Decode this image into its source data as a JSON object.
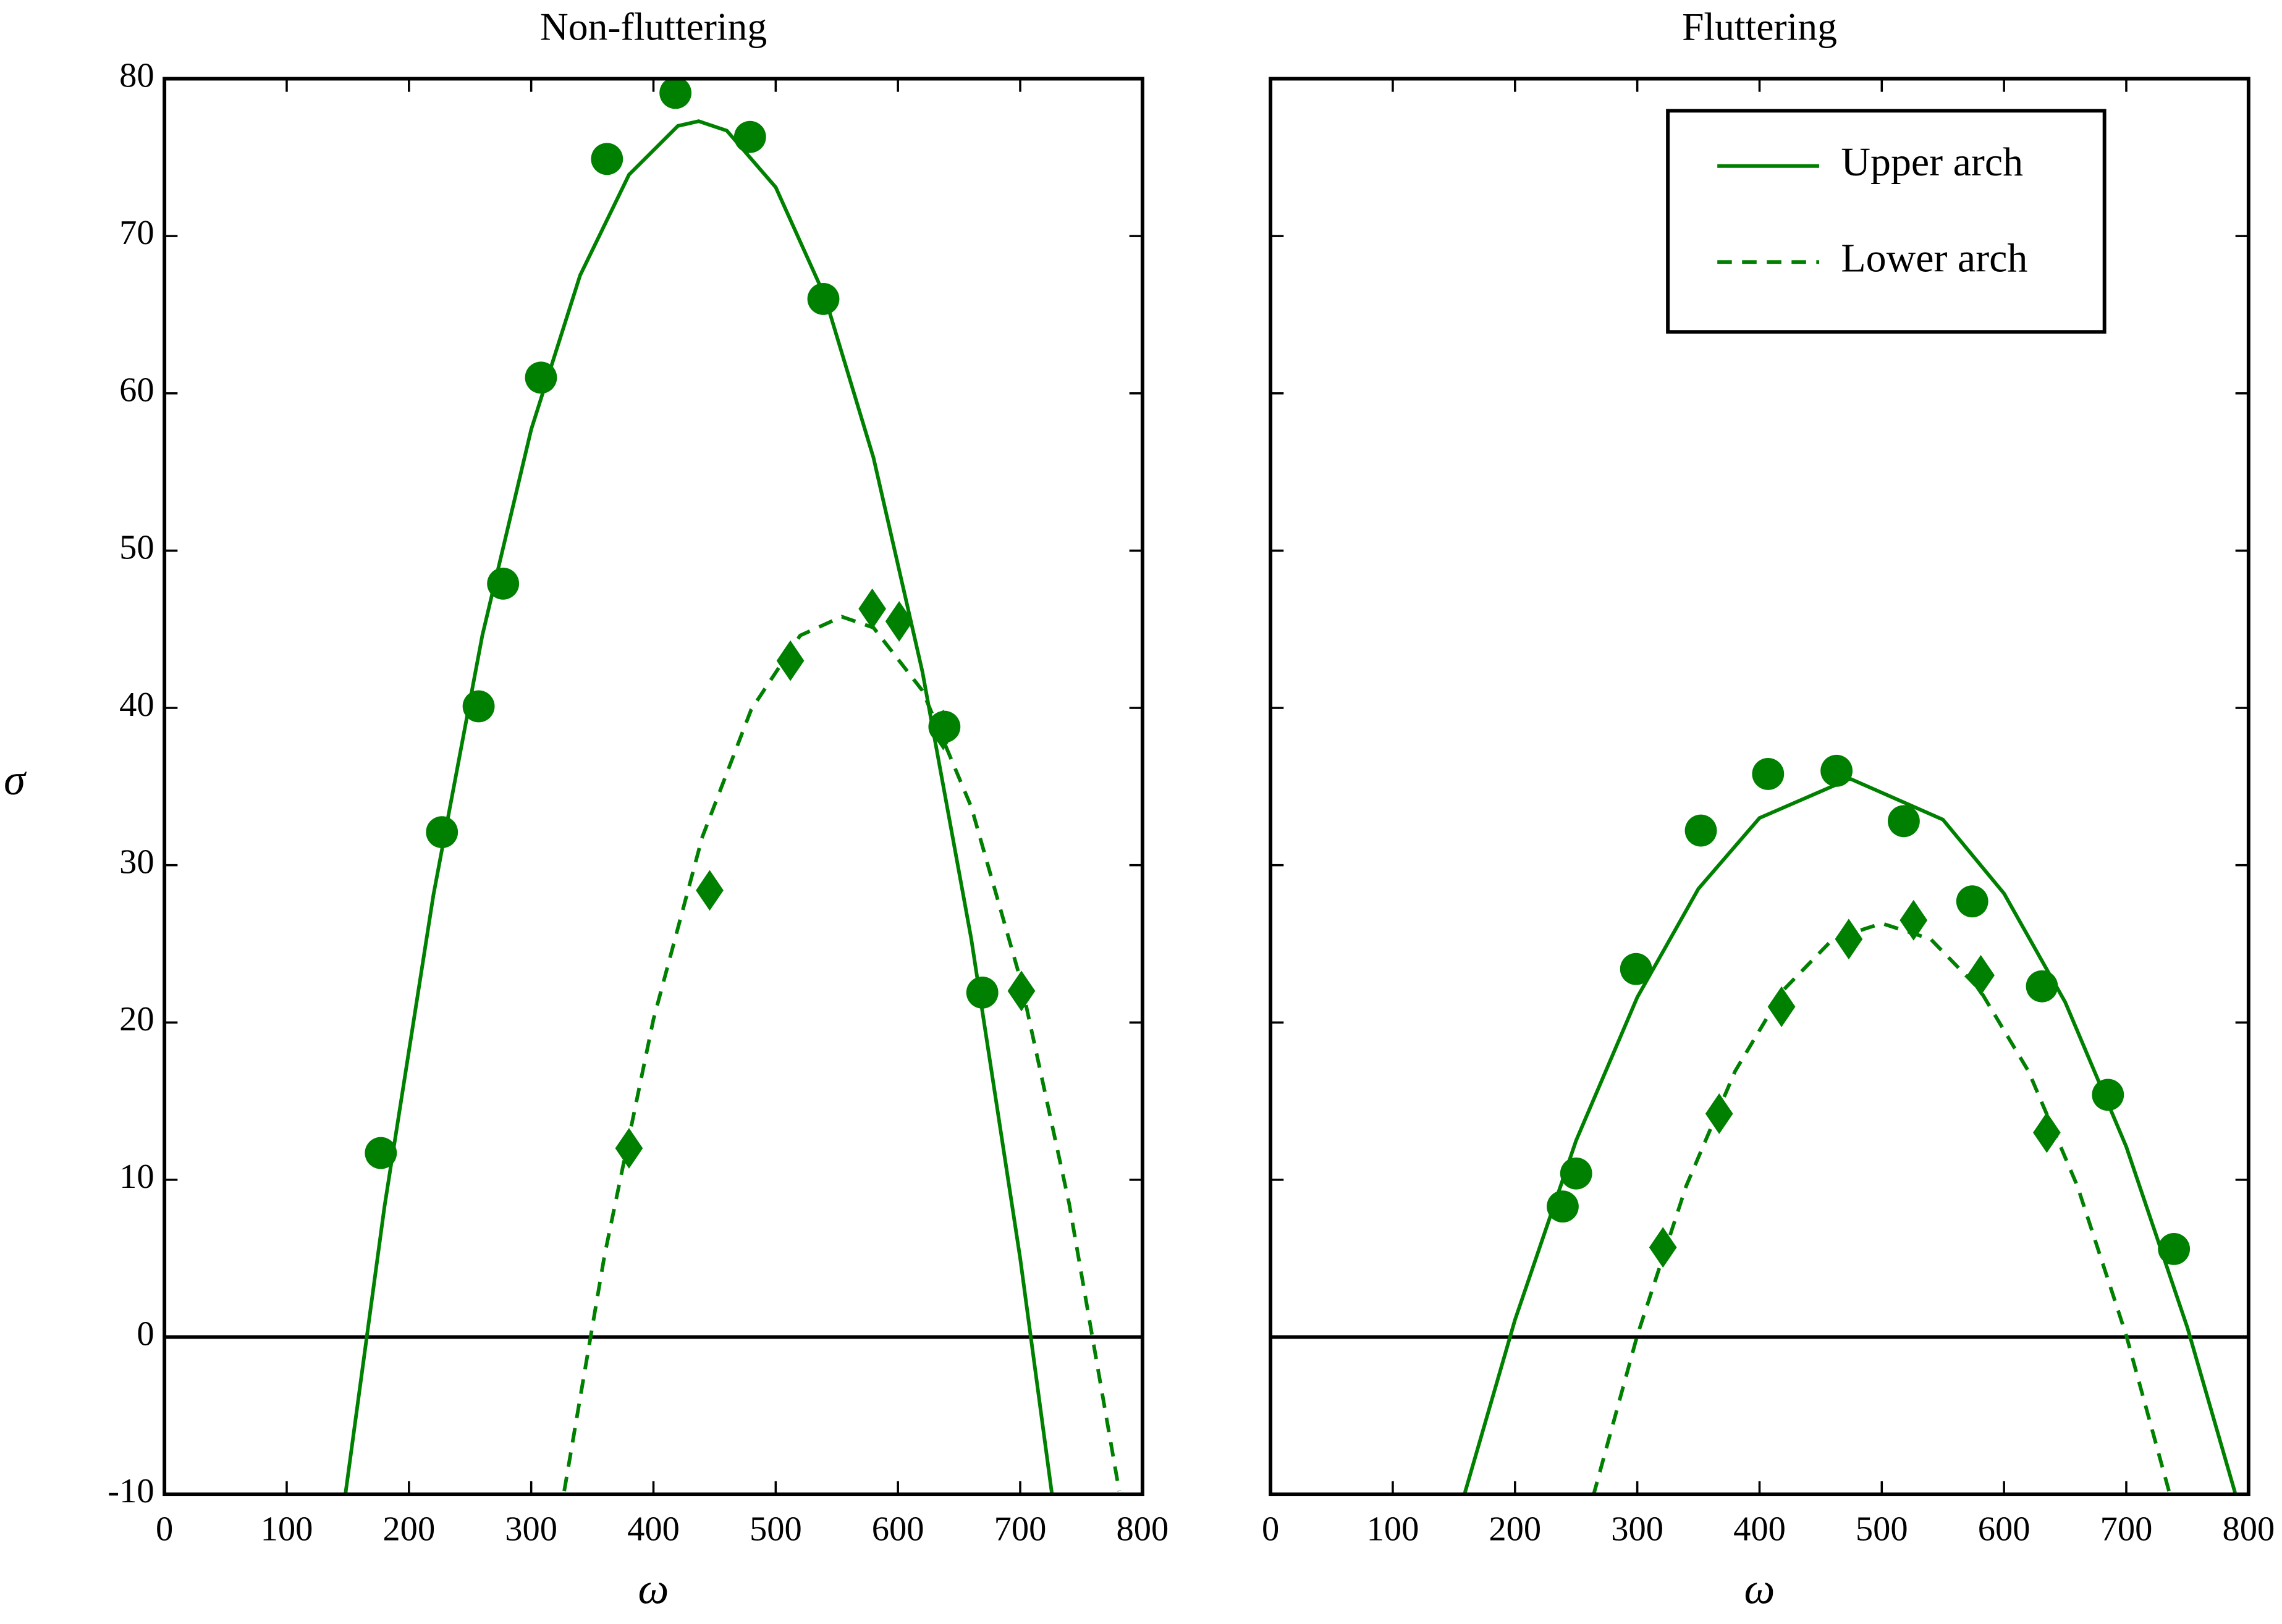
{
  "chart_data": [
    {
      "type": "scatter",
      "title": "Non-fluttering",
      "xlabel": "ω",
      "ylabel": "σ",
      "xlim": [
        0,
        800
      ],
      "ylim": [
        -10,
        80
      ],
      "xticks": [
        0,
        100,
        200,
        300,
        400,
        500,
        600,
        700,
        800
      ],
      "yticks": [
        -10,
        0,
        10,
        20,
        30,
        40,
        50,
        60,
        70,
        80
      ],
      "ytick_labels": true,
      "hline": 0,
      "series": [
        {
          "color": "#008000",
          "marker": "circle",
          "x": [
            177,
            227,
            257,
            277,
            308,
            362,
            418,
            479,
            539,
            638,
            669
          ],
          "values": [
            11.7,
            32.1,
            40.1,
            47.9,
            61,
            74.9,
            79.1,
            76.3,
            66,
            38.8,
            21.9
          ]
        },
        {
          "color": "#008000",
          "marker": "diamond",
          "x": [
            380,
            446,
            512,
            579,
            601,
            637,
            701
          ],
          "values": [
            12,
            28.4,
            43,
            46.3,
            45.5,
            38.6,
            22
          ]
        },
        {
          "color": "#008000",
          "line_style": "solid",
          "x": [
            148,
            180,
            220,
            260,
            300,
            340,
            380,
            420,
            437,
            460,
            500,
            540,
            580,
            620,
            660,
            700,
            726
          ],
          "values": [
            -10,
            8.3,
            28.1,
            44.6,
            57.7,
            67.5,
            73.9,
            77,
            77.3,
            76.7,
            73.1,
            66.2,
            55.9,
            42.3,
            25.3,
            5,
            -10
          ]
        },
        {
          "color": "#008000",
          "line_style": "dashed",
          "x": [
            327,
            360,
            400,
            440,
            480,
            520,
            554,
            580,
            620,
            660,
            700,
            740,
            781
          ],
          "values": [
            -9.8,
            5.2,
            20.2,
            31.8,
            39.9,
            44.6,
            45.8,
            45.1,
            41.1,
            33.7,
            22.8,
            8.5,
            -9.8
          ]
        }
      ]
    },
    {
      "type": "scatter",
      "title": "Fluttering",
      "xlabel": "ω",
      "xlim": [
        0,
        800
      ],
      "ylim": [
        -10,
        80
      ],
      "xticks": [
        0,
        100,
        200,
        300,
        400,
        500,
        600,
        700,
        800
      ],
      "yticks": [
        -10,
        0,
        10,
        20,
        30,
        40,
        50,
        60,
        70,
        80
      ],
      "ytick_labels": false,
      "hline": 0,
      "legend": "upper right",
      "series": [
        {
          "color": "#008000",
          "marker": "circle",
          "x": [
            239,
            250,
            299,
            352,
            407,
            463,
            518,
            574,
            631,
            685,
            739
          ],
          "values": [
            8.3,
            10.4,
            23.4,
            32.2,
            35.8,
            36,
            32.8,
            27.7,
            22.3,
            15.4,
            5.6
          ]
        },
        {
          "color": "#008000",
          "marker": "diamond",
          "x": [
            321,
            367,
            418,
            473,
            526,
            581,
            635
          ],
          "values": [
            5.7,
            14.2,
            21,
            25.3,
            26.5,
            23,
            13
          ]
        },
        {
          "name": "Upper arch",
          "color": "#008000",
          "line_style": "solid",
          "x": [
            159,
            200,
            250,
            300,
            350,
            400,
            474,
            550,
            600,
            650,
            700,
            750,
            789
          ],
          "values": [
            -9.9,
            1.1,
            12.5,
            21.6,
            28.5,
            33,
            35.5,
            32.9,
            28.2,
            21.3,
            12.1,
            0.6,
            -9.9
          ]
        },
        {
          "name": "Lower arch",
          "color": "#008000",
          "line_style": "dashed",
          "x": [
            264,
            300,
            340,
            380,
            420,
            460,
            500,
            540,
            580,
            620,
            660,
            700,
            736
          ],
          "values": [
            -10.1,
            0.1,
            9.6,
            16.9,
            22.1,
            25.3,
            26.3,
            25.3,
            22.1,
            16.9,
            9.6,
            0.1,
            -10.1
          ]
        }
      ]
    }
  ]
}
